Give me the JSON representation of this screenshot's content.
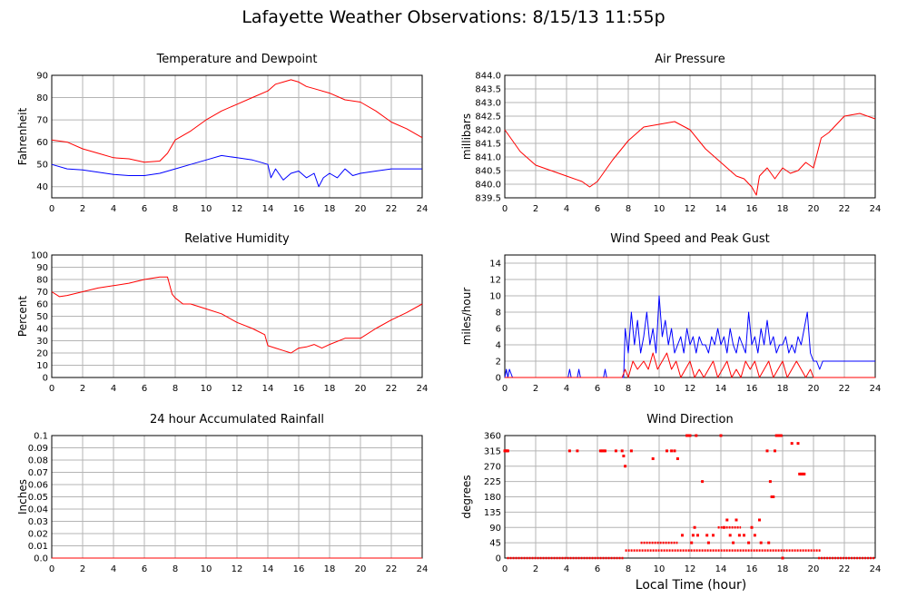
{
  "page": {
    "title": "Lafayette Weather Observations: 8/15/13 11:55p"
  },
  "footer": {
    "xlabel": "Local Time (hour)"
  },
  "chart_data": [
    {
      "type": "line",
      "title": "Temperature and Dewpoint",
      "xlabel": "",
      "ylabel": "Fahrenheit",
      "xlim": [
        0,
        24
      ],
      "ylim": [
        35,
        90
      ],
      "xticks": [
        0,
        2,
        4,
        6,
        8,
        10,
        12,
        14,
        16,
        18,
        20,
        22,
        24
      ],
      "yticks": [
        40,
        50,
        60,
        70,
        80,
        90
      ],
      "yticklabels": [
        "40",
        "50",
        "60",
        "70",
        "80",
        "90"
      ],
      "series": [
        {
          "color": "#ff0000",
          "x": [
            0,
            1,
            2,
            3,
            4,
            5,
            6,
            7,
            7.5,
            8,
            8.5,
            9,
            10,
            11,
            12,
            13,
            14,
            14.5,
            15,
            15.5,
            16,
            16.5,
            17,
            18,
            19,
            20,
            21,
            22,
            23,
            24
          ],
          "values": [
            61,
            60,
            57,
            55,
            53,
            52.5,
            51,
            51.5,
            55,
            61,
            63,
            65,
            70,
            74,
            77,
            80,
            83,
            86,
            87,
            88,
            87,
            85,
            84,
            82,
            79,
            78,
            74,
            69,
            66,
            62
          ]
        },
        {
          "color": "#0000ff",
          "x": [
            0,
            1,
            2,
            3,
            4,
            5,
            6,
            7,
            8,
            9,
            10,
            11,
            12,
            13,
            13.5,
            14,
            14.2,
            14.5,
            15,
            15.5,
            16,
            16.5,
            17,
            17.3,
            17.6,
            18,
            18.5,
            19,
            19.5,
            20,
            21,
            22,
            23,
            24
          ],
          "values": [
            50,
            48,
            47.5,
            46.5,
            45.5,
            45,
            45,
            46,
            48,
            50,
            52,
            54,
            53,
            52,
            51,
            50,
            44,
            48,
            43,
            46,
            47,
            44,
            46,
            40,
            44,
            46,
            44,
            48,
            45,
            46,
            47,
            48,
            48,
            48
          ]
        }
      ]
    },
    {
      "type": "line",
      "title": "Air Pressure",
      "xlabel": "",
      "ylabel": "millibars",
      "xlim": [
        0,
        24
      ],
      "ylim": [
        839.5,
        844
      ],
      "xticks": [
        0,
        2,
        4,
        6,
        8,
        10,
        12,
        14,
        16,
        18,
        20,
        22,
        24
      ],
      "yticks": [
        839.5,
        840,
        840.5,
        841,
        841.5,
        842,
        842.5,
        843,
        843.5,
        844
      ],
      "yticklabels": [
        "839.5",
        "840.0",
        "840.5",
        "841.0",
        "841.5",
        "842.0",
        "842.5",
        "843.0",
        "843.5",
        "844.0"
      ],
      "series": [
        {
          "color": "#ff0000",
          "x": [
            0,
            1,
            2,
            3,
            4,
            5,
            5.5,
            6,
            7,
            8,
            9,
            10,
            11,
            12,
            13,
            14,
            15,
            15.5,
            16,
            16.3,
            16.5,
            17,
            17.5,
            18,
            18.5,
            19,
            19.5,
            20,
            20.5,
            21,
            22,
            23,
            24
          ],
          "values": [
            842,
            841.2,
            840.7,
            840.5,
            840.3,
            840.1,
            839.9,
            840.1,
            840.9,
            841.6,
            842.1,
            842.2,
            842.3,
            842,
            841.3,
            840.8,
            840.3,
            840.2,
            839.9,
            839.6,
            840.3,
            840.6,
            840.2,
            840.6,
            840.4,
            840.5,
            840.8,
            840.6,
            841.7,
            841.9,
            842.5,
            842.6,
            842.4
          ]
        }
      ]
    },
    {
      "type": "line",
      "title": "Relative Humidity",
      "xlabel": "",
      "ylabel": "Percent",
      "xlim": [
        0,
        24
      ],
      "ylim": [
        0,
        100
      ],
      "xticks": [
        0,
        2,
        4,
        6,
        8,
        10,
        12,
        14,
        16,
        18,
        20,
        22,
        24
      ],
      "yticks": [
        0,
        10,
        20,
        30,
        40,
        50,
        60,
        70,
        80,
        90,
        100
      ],
      "yticklabels": [
        "0",
        "10",
        "20",
        "30",
        "40",
        "50",
        "60",
        "70",
        "80",
        "90",
        "100"
      ],
      "series": [
        {
          "color": "#ff0000",
          "x": [
            0,
            0.5,
            1,
            2,
            3,
            4,
            5,
            6,
            7,
            7.5,
            7.8,
            8,
            8.5,
            9,
            10,
            11,
            12,
            13,
            13.8,
            14,
            14.5,
            15,
            15.5,
            16,
            16.5,
            17,
            17.5,
            18,
            19,
            20,
            21,
            22,
            23,
            24
          ],
          "values": [
            70,
            66,
            67,
            70,
            73,
            75,
            77,
            80,
            82,
            82,
            68,
            65,
            60,
            60,
            56,
            52,
            45,
            40,
            35,
            26,
            24,
            22,
            20,
            24,
            25,
            27,
            24,
            27,
            32,
            32,
            40,
            47,
            53,
            60
          ]
        }
      ]
    },
    {
      "type": "line",
      "title": "Wind Speed and Peak Gust",
      "xlabel": "",
      "ylabel": "miles/hour",
      "xlim": [
        0,
        24
      ],
      "ylim": [
        0,
        15
      ],
      "xticks": [
        0,
        2,
        4,
        6,
        8,
        10,
        12,
        14,
        16,
        18,
        20,
        22,
        24
      ],
      "yticks": [
        0,
        2,
        4,
        6,
        8,
        10,
        12,
        14
      ],
      "yticklabels": [
        "0",
        "2",
        "4",
        "6",
        "8",
        "10",
        "12",
        "14"
      ],
      "series": [
        {
          "color": "#0000ff",
          "x": [
            0,
            0.1,
            0.2,
            0.3,
            0.5,
            4.1,
            4.2,
            4.3,
            4.7,
            4.8,
            4.9,
            6.4,
            6.5,
            6.6,
            7.7,
            7.8,
            8,
            8.2,
            8.4,
            8.6,
            8.8,
            9,
            9.2,
            9.4,
            9.6,
            9.8,
            10,
            10.2,
            10.4,
            10.6,
            10.8,
            11,
            11.2,
            11.4,
            11.6,
            11.8,
            12,
            12.2,
            12.4,
            12.6,
            12.8,
            13,
            13.2,
            13.4,
            13.6,
            13.8,
            14,
            14.2,
            14.4,
            14.6,
            14.8,
            15,
            15.2,
            15.4,
            15.6,
            15.8,
            16,
            16.2,
            16.4,
            16.6,
            16.8,
            17,
            17.2,
            17.4,
            17.6,
            17.8,
            18,
            18.2,
            18.4,
            18.6,
            18.8,
            19,
            19.2,
            19.4,
            19.6,
            19.8,
            20,
            20.2,
            20.4,
            20.6,
            24
          ],
          "values": [
            0,
            1,
            0,
            1,
            0,
            0,
            1,
            0,
            0,
            1,
            0,
            0,
            1,
            0,
            0,
            6,
            3,
            8,
            4,
            7,
            3,
            5,
            8,
            4,
            6,
            3,
            10,
            5,
            7,
            4,
            6,
            3,
            4,
            5,
            3,
            6,
            4,
            5,
            3,
            5,
            4,
            4,
            3,
            5,
            4,
            6,
            4,
            5,
            3,
            6,
            4,
            3,
            5,
            4,
            3,
            8,
            4,
            5,
            3,
            6,
            4,
            7,
            4,
            5,
            3,
            4,
            4,
            5,
            3,
            4,
            3,
            5,
            4,
            6,
            8,
            3,
            2,
            2,
            1,
            2,
            2
          ]
        },
        {
          "color": "#ff0000",
          "x": [
            0,
            7.6,
            7.8,
            8,
            8.3,
            8.6,
            9,
            9.3,
            9.6,
            9.9,
            10.2,
            10.5,
            10.8,
            11.1,
            11.4,
            11.7,
            12,
            12.3,
            12.6,
            12.9,
            13.2,
            13.5,
            13.8,
            14.1,
            14.4,
            14.7,
            15,
            15.3,
            15.6,
            15.9,
            16.2,
            16.5,
            16.8,
            17.1,
            17.4,
            17.7,
            18,
            18.3,
            18.6,
            18.9,
            19.2,
            19.5,
            19.8,
            20,
            24
          ],
          "values": [
            0,
            0,
            1,
            0,
            2,
            1,
            2,
            1,
            3,
            1,
            2,
            3,
            1,
            2,
            0,
            1,
            2,
            0,
            1,
            0,
            1,
            2,
            0,
            1,
            2,
            0,
            1,
            0,
            2,
            1,
            2,
            0,
            1,
            2,
            0,
            1,
            2,
            0,
            1,
            2,
            1,
            0,
            1,
            0,
            0
          ]
        }
      ]
    },
    {
      "type": "line",
      "title": "24 hour Accumulated Rainfall",
      "xlabel": "",
      "ylabel": "Inches",
      "xlim": [
        0,
        24
      ],
      "ylim": [
        0,
        0.1
      ],
      "xticks": [
        0,
        2,
        4,
        6,
        8,
        10,
        12,
        14,
        16,
        18,
        20,
        22,
        24
      ],
      "yticks": [
        0,
        0.01,
        0.02,
        0.03,
        0.04,
        0.05,
        0.06,
        0.07,
        0.08,
        0.09,
        0.1
      ],
      "yticklabels": [
        "0.0",
        "0.01",
        "0.02",
        "0.03",
        "0.04",
        "0.05",
        "0.06",
        "0.07",
        "0.08",
        "0.09",
        "0.1"
      ],
      "series": [
        {
          "color": "#ff0000",
          "x": [
            0,
            24
          ],
          "values": [
            0,
            0
          ]
        }
      ]
    },
    {
      "type": "scatter",
      "title": "Wind Direction",
      "xlabel": "",
      "ylabel": "degrees",
      "xlim": [
        0,
        24
      ],
      "ylim": [
        0,
        360
      ],
      "xticks": [
        0,
        2,
        4,
        6,
        8,
        10,
        12,
        14,
        16,
        18,
        20,
        22,
        24
      ],
      "yticks": [
        0,
        45,
        90,
        135,
        180,
        225,
        270,
        315,
        360
      ],
      "yticklabels": [
        "0",
        "45",
        "90",
        "135",
        "180",
        "225",
        "270",
        "315",
        "360"
      ],
      "segments": [
        {
          "x0": 0.15,
          "x1": 7.7,
          "y": 0
        },
        {
          "x0": 20.3,
          "x1": 24,
          "y": 0
        },
        {
          "x0": 7.8,
          "x1": 20.5,
          "y": 22.5
        },
        {
          "x0": 8.8,
          "x1": 11.2,
          "y": 45
        },
        {
          "x0": 13.8,
          "x1": 15.3,
          "y": 90
        }
      ],
      "series": [
        {
          "color": "#ff0000",
          "x": [
            0,
            0.05,
            0.1,
            0.15,
            0.2,
            4.2,
            4.7,
            6.2,
            6.3,
            6.4,
            6.5,
            7.2,
            7.6,
            7.7,
            7.8,
            8.2,
            9.6,
            10.5,
            10.8,
            11,
            11.2,
            11.8,
            11.9,
            12,
            12.1,
            12.3,
            12.8,
            13.1,
            13.5,
            14,
            14.2,
            14.4,
            15,
            15.5,
            16,
            16.5,
            17,
            17.2,
            17.3,
            17.4,
            17.5,
            17.6,
            17.7,
            17.8,
            17.9,
            18,
            18.6,
            19,
            19.1,
            19.2,
            19.3,
            19.4,
            11.5,
            12.5,
            13.2,
            14.6,
            14.8,
            15.2,
            15.8,
            16.2,
            16.6,
            17.1,
            12.2,
            12.4
          ],
          "values": [
            315,
            315,
            315,
            315,
            315,
            315,
            315,
            315,
            315,
            315,
            315,
            315,
            315,
            300,
            270,
            315,
            292,
            315,
            315,
            315,
            292,
            360,
            360,
            360,
            45,
            90,
            225,
            67,
            67,
            360,
            90,
            112,
            112,
            67,
            90,
            112,
            315,
            225,
            180,
            180,
            315,
            360,
            360,
            360,
            360,
            0,
            337,
            337,
            247,
            247,
            247,
            247,
            67,
            67,
            45,
            67,
            45,
            67,
            45,
            67,
            45,
            45,
            67,
            360
          ]
        }
      ]
    }
  ]
}
